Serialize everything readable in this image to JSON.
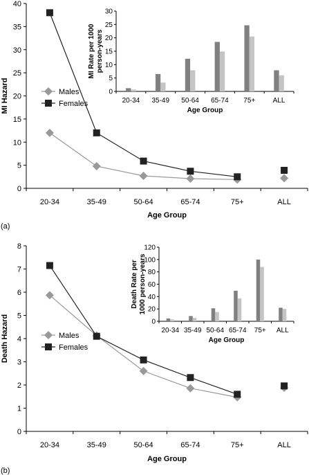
{
  "colors": {
    "males": "#999999",
    "females": "#222222",
    "bar_males": "#808080",
    "bar_females": "#c4c4c4",
    "axis": "#000000"
  },
  "chart_data": [
    {
      "type": "line",
      "panel_label": "(a)",
      "categories": [
        "20-34",
        "35-49",
        "50-64",
        "65-74",
        "75+",
        "ALL"
      ],
      "series": [
        {
          "name": "Males",
          "values": [
            12,
            4.8,
            2.7,
            2.1,
            1.9,
            2.2
          ],
          "marker": "diamond"
        },
        {
          "name": "Females",
          "values": [
            38,
            12,
            5.9,
            3.7,
            2.5,
            3.9
          ],
          "marker": "square"
        }
      ],
      "connected_points": 5,
      "xlabel": "Age Group",
      "ylabel": "MI Hazard",
      "ylim": [
        0,
        40
      ],
      "yticks": [
        0,
        5,
        10,
        15,
        20,
        25,
        30,
        35,
        40
      ],
      "legend": "left",
      "inset": {
        "type": "bar",
        "categories": [
          "20-34",
          "35-49",
          "50-64",
          "65-74",
          "75+",
          "ALL"
        ],
        "series": [
          {
            "values": [
              1.2,
              6.5,
              12.2,
              18.5,
              24.7,
              7.9
            ]
          },
          {
            "values": [
              0.7,
              3.3,
              7.9,
              14.9,
              20.5,
              6.0
            ]
          }
        ],
        "xlabel": "Age Group",
        "ylabel": "MI Rate per 1000 person-years",
        "ylim": [
          0,
          30
        ],
        "yticks": [
          0,
          5,
          10,
          15,
          20,
          25,
          30
        ]
      }
    },
    {
      "type": "line",
      "panel_label": "(b)",
      "categories": [
        "20-34",
        "35-49",
        "50-64",
        "65-74",
        "75+",
        "ALL"
      ],
      "series": [
        {
          "name": "Males",
          "values": [
            5.87,
            4.13,
            2.6,
            1.86,
            1.47,
            1.88
          ],
          "marker": "diamond"
        },
        {
          "name": "Females",
          "values": [
            7.15,
            4.1,
            3.08,
            2.32,
            1.6,
            1.96
          ],
          "marker": "square"
        }
      ],
      "connected_points": 5,
      "xlabel": "Age Group",
      "ylabel": "Death Hazard",
      "ylim": [
        0,
        8
      ],
      "yticks": [
        0,
        1,
        2,
        3,
        4,
        5,
        6,
        7,
        8
      ],
      "legend": "left",
      "inset": {
        "type": "bar",
        "categories": [
          "20-34",
          "35-49",
          "50-64",
          "65-74",
          "75+",
          "ALL"
        ],
        "series": [
          {
            "values": [
              4.5,
              8.5,
              21,
              49.5,
              100,
              22
            ]
          },
          {
            "values": [
              3,
              5.5,
              15,
              37,
              88,
              20
            ]
          }
        ],
        "xlabel": "Age Group",
        "ylabel": "Death Rate per 1000 person-years",
        "ylim": [
          0,
          120
        ],
        "yticks": [
          0,
          20,
          40,
          60,
          80,
          100,
          120
        ]
      }
    }
  ]
}
